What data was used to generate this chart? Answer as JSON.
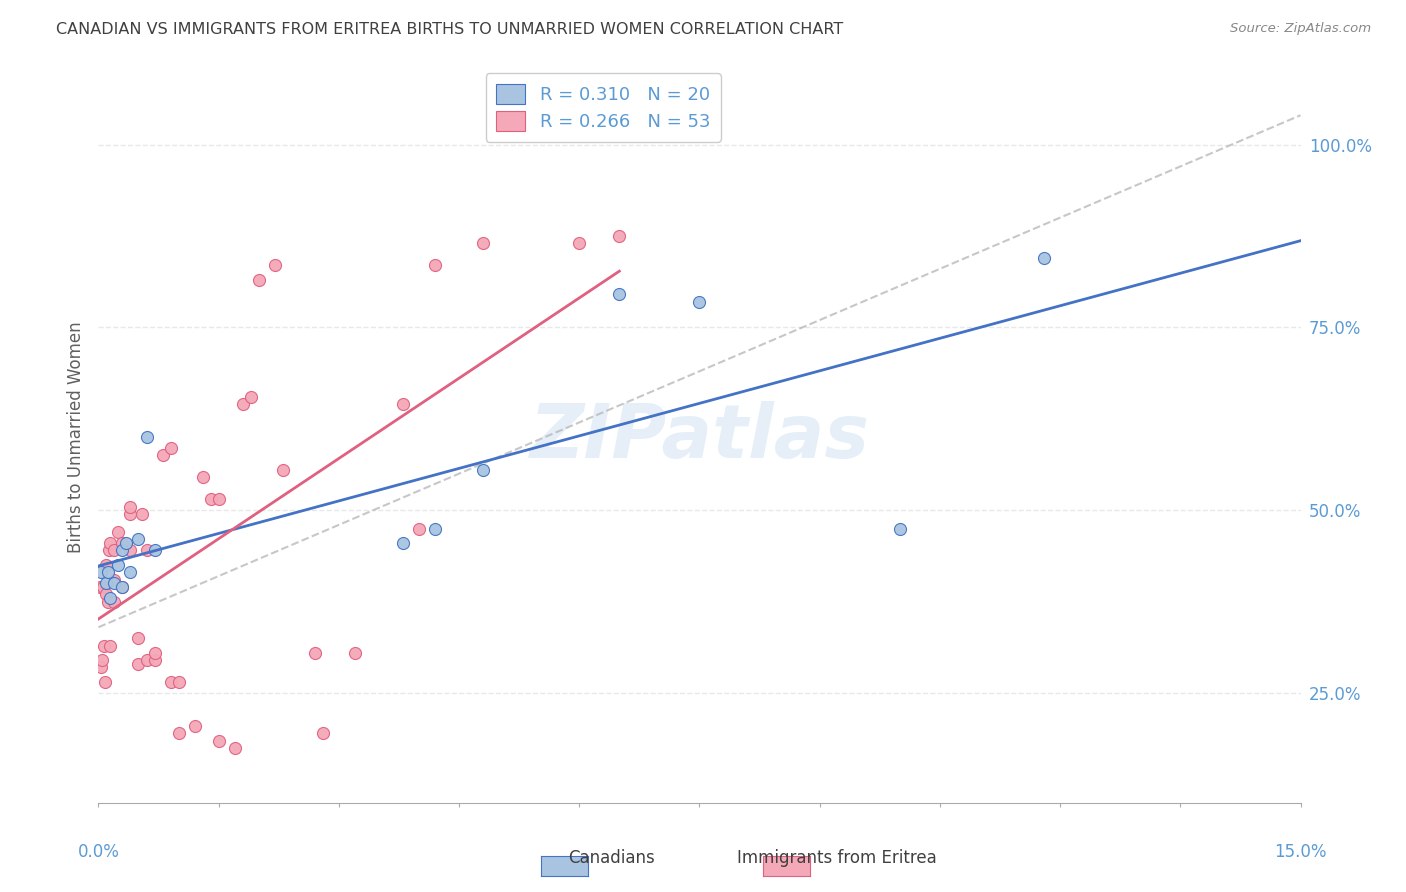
{
  "title": "CANADIAN VS IMMIGRANTS FROM ERITREA BIRTHS TO UNMARRIED WOMEN CORRELATION CHART",
  "source": "Source: ZipAtlas.com",
  "ylabel": "Births to Unmarried Women",
  "legend_line1": "R = 0.310   N = 20",
  "legend_line2": "R = 0.266   N = 53",
  "watermark": "ZIPatlas",
  "canadians_x": [
    0.0003,
    0.001,
    0.0012,
    0.0015,
    0.002,
    0.0025,
    0.003,
    0.003,
    0.0035,
    0.004,
    0.005,
    0.006,
    0.007,
    0.038,
    0.042,
    0.048,
    0.065,
    0.075,
    0.1,
    0.118
  ],
  "canadians_y": [
    0.415,
    0.4,
    0.415,
    0.38,
    0.4,
    0.425,
    0.395,
    0.445,
    0.455,
    0.415,
    0.46,
    0.6,
    0.445,
    0.455,
    0.475,
    0.555,
    0.795,
    0.785,
    0.475,
    0.845
  ],
  "eritreans_x": [
    0.0002,
    0.0003,
    0.0005,
    0.0006,
    0.0007,
    0.0008,
    0.001,
    0.001,
    0.0012,
    0.0013,
    0.0015,
    0.0015,
    0.002,
    0.002,
    0.002,
    0.0025,
    0.003,
    0.003,
    0.004,
    0.004,
    0.004,
    0.005,
    0.005,
    0.0055,
    0.006,
    0.006,
    0.007,
    0.007,
    0.008,
    0.009,
    0.009,
    0.01,
    0.01,
    0.012,
    0.013,
    0.014,
    0.015,
    0.015,
    0.017,
    0.018,
    0.019,
    0.02,
    0.022,
    0.023,
    0.027,
    0.028,
    0.032,
    0.038,
    0.04,
    0.042,
    0.048,
    0.06,
    0.065
  ],
  "eritreans_y": [
    0.395,
    0.285,
    0.295,
    0.395,
    0.315,
    0.265,
    0.385,
    0.425,
    0.375,
    0.445,
    0.315,
    0.455,
    0.405,
    0.375,
    0.445,
    0.47,
    0.395,
    0.455,
    0.495,
    0.445,
    0.505,
    0.29,
    0.325,
    0.495,
    0.445,
    0.295,
    0.295,
    0.305,
    0.575,
    0.265,
    0.585,
    0.265,
    0.195,
    0.205,
    0.545,
    0.515,
    0.515,
    0.185,
    0.175,
    0.645,
    0.655,
    0.815,
    0.835,
    0.555,
    0.305,
    0.195,
    0.305,
    0.645,
    0.475,
    0.835,
    0.865,
    0.865,
    0.875
  ],
  "blue_color": "#a8c4e0",
  "pink_color": "#f4a8b8",
  "blue_line_color": "#4472c4",
  "pink_line_color": "#e06080",
  "dashed_line_color": "#b0b0b0",
  "grid_color": "#e8e8e8",
  "title_color": "#404040",
  "axis_color": "#5b9bd5",
  "x_range": [
    0.0,
    0.15
  ],
  "y_range": [
    0.1,
    1.1
  ],
  "right_yticks": [
    0.25,
    0.5,
    0.75,
    1.0
  ],
  "right_yticklabels": [
    "25.0%",
    "50.0%",
    "75.0%",
    "100.0%"
  ]
}
